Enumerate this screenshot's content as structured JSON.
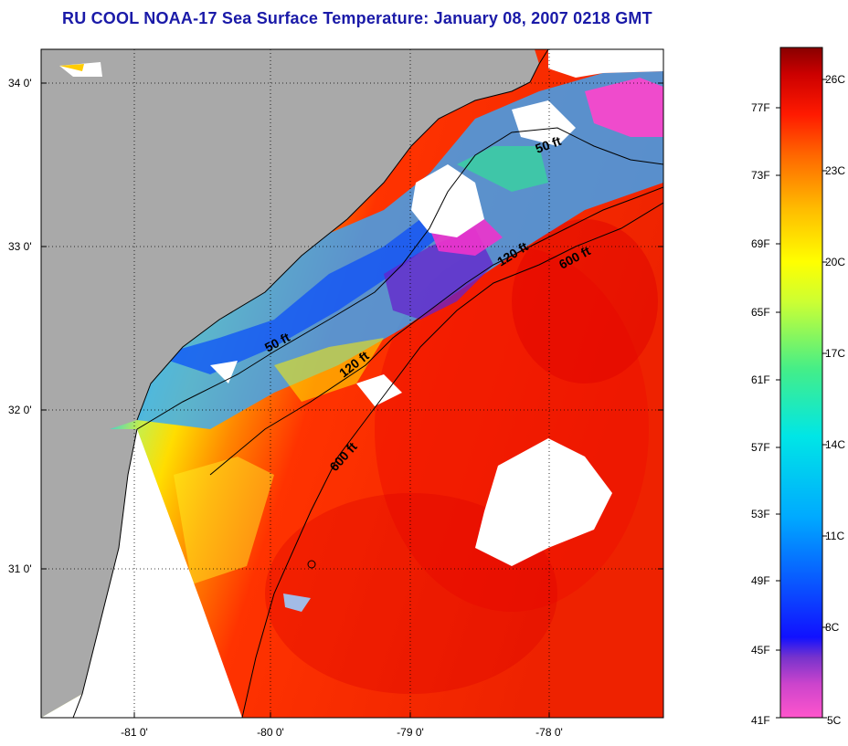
{
  "title": "RU COOL  NOAA-17  Sea Surface Temperature:  January 08, 2007 0218 GMT",
  "map": {
    "lat_labels": [
      "34 0'",
      "33 0'",
      "32 0'",
      "31 0'"
    ],
    "lon_labels": [
      "-81 0'",
      "-80 0'",
      "-79 0'",
      "-78 0'"
    ],
    "contour_labels": [
      "50 ft",
      "120 ft",
      "600 ft",
      "50 ft",
      "120 ft",
      "600 ft"
    ]
  },
  "colorbar": {
    "f_labels": [
      "77F",
      "73F",
      "69F",
      "65F",
      "61F",
      "57F",
      "53F",
      "49F",
      "45F",
      "41F"
    ],
    "c_labels": [
      "26C",
      "23C",
      "20C",
      "17C",
      "14C",
      "11C",
      "8C",
      "5C"
    ]
  }
}
